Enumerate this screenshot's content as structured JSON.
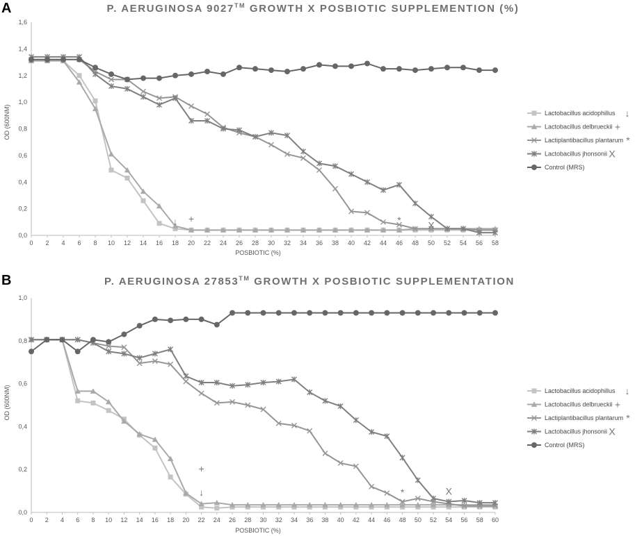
{
  "panels": [
    {
      "label": "A",
      "chart_data": {
        "type": "line",
        "title": "P. AERUGINOSA 9027",
        "title_sup": "TM",
        "title_rest": " GROWTH X POSBIOTIC SUPPLEMENTION (%)",
        "xlabel": "POSBIOTIC (%)",
        "ylabel": "OD (600NM)",
        "xlim": [
          0,
          58
        ],
        "ylim": [
          0,
          1.6
        ],
        "x_ticks": [
          0,
          2,
          4,
          6,
          8,
          10,
          12,
          14,
          16,
          18,
          20,
          22,
          24,
          26,
          28,
          30,
          32,
          34,
          36,
          38,
          40,
          42,
          44,
          46,
          48,
          50,
          52,
          54,
          56,
          58
        ],
        "y_ticks": [
          0,
          0.2,
          0.4,
          0.6,
          0.8,
          1.0,
          1.2,
          1.4,
          1.6
        ],
        "y_tick_labels": [
          "0,0",
          "0,2",
          "0,4",
          "0,6",
          "0,8",
          "1,0",
          "1,2",
          "1,4",
          "1,6"
        ],
        "grid": false,
        "legend_position": "right",
        "x": [
          0,
          2,
          4,
          6,
          8,
          10,
          12,
          14,
          16,
          18,
          20,
          22,
          24,
          26,
          28,
          30,
          32,
          34,
          36,
          38,
          40,
          42,
          44,
          46,
          48,
          50,
          52,
          54,
          56,
          58
        ],
        "series": [
          {
            "name": "Lactobacillus acidophillus",
            "symbol": "↓",
            "marker": "square",
            "color": "#c3c3c3",
            "values": [
              1.31,
              1.31,
              1.31,
              1.2,
              1.01,
              0.49,
              0.43,
              0.26,
              0.09,
              0.05,
              0.04,
              0.04,
              0.04,
              0.04,
              0.04,
              0.04,
              0.04,
              0.04,
              0.04,
              0.04,
              0.04,
              0.04,
              0.04,
              0.04,
              0.04,
              0.04,
              0.04,
              0.04,
              0.04,
              0.04
            ]
          },
          {
            "name": "Lactobacillus delbrueckii",
            "symbol": "+",
            "marker": "triangle",
            "color": "#a9a9a9",
            "values": [
              1.31,
              1.31,
              1.31,
              1.15,
              0.95,
              0.61,
              0.49,
              0.33,
              0.22,
              0.07,
              0.04,
              0.04,
              0.04,
              0.04,
              0.04,
              0.04,
              0.04,
              0.04,
              0.04,
              0.04,
              0.04,
              0.04,
              0.04,
              0.04,
              0.05,
              0.05,
              0.05,
              0.05,
              0.05,
              0.05
            ]
          },
          {
            "name": "Lactiplantibacillus plantarum",
            "symbol": "*",
            "marker": "x",
            "color": "#959595",
            "values": [
              1.32,
              1.32,
              1.32,
              1.32,
              1.23,
              1.17,
              1.17,
              1.08,
              1.03,
              1.04,
              0.97,
              0.91,
              0.81,
              0.77,
              0.74,
              0.68,
              0.61,
              0.58,
              0.49,
              0.35,
              0.18,
              0.17,
              0.1,
              0.08,
              0.05,
              0.05,
              0.05,
              0.05,
              0.04,
              0.04
            ]
          },
          {
            "name": "Lactobacillus jhonsonii",
            "symbol": "X",
            "marker": "star",
            "color": "#7f7f7f",
            "values": [
              1.34,
              1.34,
              1.34,
              1.34,
              1.21,
              1.12,
              1.1,
              1.04,
              0.98,
              1.03,
              0.86,
              0.86,
              0.8,
              0.79,
              0.74,
              0.77,
              0.75,
              0.63,
              0.54,
              0.52,
              0.46,
              0.4,
              0.34,
              0.38,
              0.24,
              0.14,
              0.05,
              0.05,
              0.02,
              0.02
            ]
          },
          {
            "name": "Control (MRS)",
            "symbol": "",
            "marker": "circle",
            "color": "#666666",
            "values": [
              1.32,
              1.32,
              1.32,
              1.32,
              1.26,
              1.21,
              1.17,
              1.18,
              1.18,
              1.2,
              1.21,
              1.23,
              1.21,
              1.26,
              1.25,
              1.24,
              1.23,
              1.25,
              1.28,
              1.27,
              1.27,
              1.29,
              1.25,
              1.25,
              1.24,
              1.25,
              1.26,
              1.26,
              1.24,
              1.24
            ]
          }
        ],
        "annotations": [
          {
            "text": "↓",
            "x": 18,
            "y": 0.1
          },
          {
            "text": "+",
            "x": 20,
            "y": 0.12
          },
          {
            "text": "*",
            "x": 46,
            "y": 0.11
          },
          {
            "text": "X",
            "x": 50,
            "y": 0.07
          }
        ]
      }
    },
    {
      "label": "B",
      "chart_data": {
        "type": "line",
        "title": "P. AERUGINOSA 27853",
        "title_sup": "TM",
        "title_rest": " GROWTH X POSBIOTIC SUPPLEMENTATION",
        "xlabel": "POSBIOTIC (%)",
        "ylabel": "OD (600NM)",
        "xlim": [
          0,
          60
        ],
        "ylim": [
          0,
          1.0
        ],
        "x_ticks": [
          0,
          2,
          4,
          6,
          8,
          10,
          12,
          14,
          16,
          18,
          20,
          22,
          24,
          26,
          28,
          30,
          32,
          34,
          36,
          38,
          40,
          42,
          44,
          46,
          48,
          50,
          52,
          54,
          56,
          58,
          60
        ],
        "y_ticks": [
          0,
          0.2,
          0.4,
          0.6,
          0.8,
          1.0
        ],
        "y_tick_labels": [
          "0,0",
          "0,2",
          "0,4",
          "0,6",
          "0,8",
          "1,0"
        ],
        "grid": false,
        "legend_position": "right",
        "x": [
          0,
          2,
          4,
          6,
          8,
          10,
          12,
          14,
          16,
          18,
          20,
          22,
          24,
          26,
          28,
          30,
          32,
          34,
          36,
          38,
          40,
          42,
          44,
          46,
          48,
          50,
          52,
          54,
          56,
          58,
          60
        ],
        "series": [
          {
            "name": "Lactobacillus acidophillus",
            "symbol": "↓",
            "marker": "square",
            "color": "#c3c3c3",
            "values": [
              0.805,
              0.805,
              0.805,
              0.52,
              0.51,
              0.475,
              0.435,
              0.36,
              0.3,
              0.165,
              0.085,
              0.025,
              0.02,
              0.025,
              0.025,
              0.025,
              0.025,
              0.025,
              0.025,
              0.025,
              0.025,
              0.025,
              0.025,
              0.025,
              0.025,
              0.025,
              0.025,
              0.025,
              0.025,
              0.025,
              0.025
            ]
          },
          {
            "name": "Lactobacillus delbrueckii",
            "symbol": "+",
            "marker": "triangle",
            "color": "#a9a9a9",
            "values": [
              0.805,
              0.805,
              0.805,
              0.565,
              0.565,
              0.515,
              0.425,
              0.365,
              0.34,
              0.25,
              0.09,
              0.04,
              0.045,
              0.035,
              0.035,
              0.035,
              0.035,
              0.035,
              0.035,
              0.035,
              0.035,
              0.035,
              0.035,
              0.035,
              0.035,
              0.035,
              0.035,
              0.035,
              0.035,
              0.035,
              0.035
            ]
          },
          {
            "name": "Lactiplantibacillus plantarum",
            "symbol": "*",
            "marker": "x",
            "color": "#959595",
            "values": [
              0.805,
              0.805,
              0.805,
              0.805,
              0.79,
              0.775,
              0.77,
              0.695,
              0.705,
              0.69,
              0.61,
              0.555,
              0.51,
              0.515,
              0.5,
              0.48,
              0.415,
              0.405,
              0.38,
              0.275,
              0.23,
              0.215,
              0.12,
              0.09,
              0.05,
              0.065,
              0.05,
              0.04,
              0.03,
              0.03,
              0.03
            ]
          },
          {
            "name": "Lactobacillus jhonsonii",
            "symbol": "X",
            "marker": "star",
            "color": "#7f7f7f",
            "values": [
              0.805,
              0.805,
              0.805,
              0.805,
              0.79,
              0.75,
              0.74,
              0.72,
              0.74,
              0.76,
              0.635,
              0.605,
              0.605,
              0.59,
              0.595,
              0.605,
              0.61,
              0.62,
              0.56,
              0.52,
              0.495,
              0.43,
              0.375,
              0.355,
              0.255,
              0.15,
              0.065,
              0.05,
              0.055,
              0.045,
              0.045
            ]
          },
          {
            "name": "Control (MRS)",
            "symbol": "",
            "marker": "circle",
            "color": "#666666",
            "values": [
              0.75,
              0.805,
              0.805,
              0.75,
              0.805,
              0.795,
              0.83,
              0.87,
              0.9,
              0.895,
              0.9,
              0.9,
              0.875,
              0.93,
              0.93,
              0.93,
              0.93,
              0.93,
              0.93,
              0.93,
              0.93,
              0.93,
              0.93,
              0.93,
              0.93,
              0.93,
              0.93,
              0.93,
              0.93,
              0.93,
              0.93
            ]
          }
        ],
        "annotations": [
          {
            "text": "+",
            "x": 22,
            "y": 0.2
          },
          {
            "text": "↓",
            "x": 22,
            "y": 0.09
          },
          {
            "text": "*",
            "x": 48,
            "y": 0.09
          },
          {
            "text": "X",
            "x": 54,
            "y": 0.095
          }
        ]
      }
    }
  ]
}
